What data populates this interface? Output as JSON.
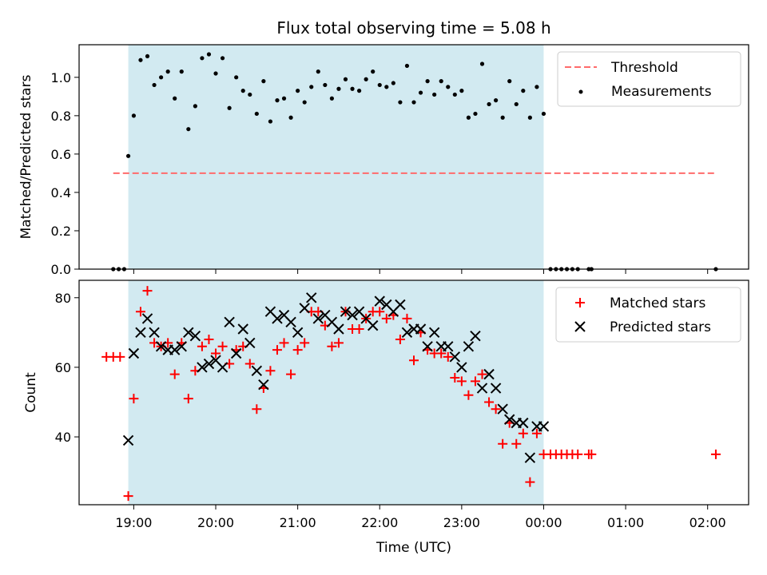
{
  "figure_title": "Flux total observing time = 5.08 h",
  "colors": {
    "observing_band": "#add8e6",
    "threshold": "#ff6b6b",
    "measurements": "#000000",
    "matched": "#ff0000",
    "predicted": "#000000"
  },
  "chart_data": [
    {
      "type": "scatter",
      "title": "Flux total observing time = 5.08 h",
      "xlabel": "",
      "ylabel": "Matched/Predicted stars",
      "xlim": [
        "18:20",
        "02:30"
      ],
      "ylim": [
        0,
        1.17
      ],
      "yticks": [
        "0.0",
        "0.2",
        "0.4",
        "0.6",
        "0.8",
        "1.0"
      ],
      "observing_window": [
        "18:56",
        "00:00"
      ],
      "legend_position": "top-right",
      "threshold": {
        "name": "Threshold",
        "value": 0.5,
        "x_range": [
          "18:45",
          "02:05"
        ]
      },
      "series": [
        {
          "name": "Measurements",
          "x": [
            "18:45",
            "18:49",
            "18:53",
            "18:56",
            "19:00",
            "19:05",
            "19:10",
            "19:15",
            "19:20",
            "19:25",
            "19:30",
            "19:35",
            "19:40",
            "19:45",
            "19:50",
            "19:55",
            "20:00",
            "20:05",
            "20:10",
            "20:15",
            "20:20",
            "20:25",
            "20:30",
            "20:35",
            "20:40",
            "20:45",
            "20:50",
            "20:55",
            "21:00",
            "21:05",
            "21:10",
            "21:15",
            "21:20",
            "21:25",
            "21:30",
            "21:35",
            "21:40",
            "21:45",
            "21:50",
            "21:55",
            "22:00",
            "22:05",
            "22:10",
            "22:15",
            "22:20",
            "22:25",
            "22:30",
            "22:35",
            "22:40",
            "22:45",
            "22:50",
            "22:55",
            "23:00",
            "23:05",
            "23:10",
            "23:15",
            "23:20",
            "23:25",
            "23:30",
            "23:35",
            "23:40",
            "23:45",
            "23:50",
            "23:55",
            "00:00",
            "00:05",
            "00:09",
            "00:13",
            "00:17",
            "00:21",
            "00:25",
            "00:33",
            "00:35",
            "02:06"
          ],
          "y": [
            0,
            0,
            0,
            0.59,
            0.8,
            1.09,
            1.11,
            0.96,
            1.0,
            1.03,
            0.89,
            1.03,
            0.73,
            0.85,
            1.1,
            1.12,
            1.02,
            1.1,
            0.84,
            1.0,
            0.93,
            0.91,
            0.81,
            0.98,
            0.77,
            0.88,
            0.89,
            0.79,
            0.93,
            0.87,
            0.95,
            1.03,
            0.96,
            0.89,
            0.94,
            0.99,
            0.94,
            0.93,
            0.99,
            1.03,
            0.96,
            0.95,
            0.97,
            0.87,
            1.06,
            0.87,
            0.92,
            0.98,
            0.91,
            0.98,
            0.95,
            0.91,
            0.93,
            0.79,
            0.81,
            1.07,
            0.86,
            0.88,
            0.79,
            0.98,
            0.86,
            0.93,
            0.79,
            0.95,
            0.81,
            0,
            0,
            0,
            0,
            0,
            0,
            0,
            0,
            0
          ]
        }
      ]
    },
    {
      "type": "scatter",
      "xlabel": "Time (UTC)",
      "ylabel": "Count",
      "xlim": [
        "18:20",
        "02:30"
      ],
      "ylim": [
        20.5,
        85
      ],
      "xticks": [
        "19:00",
        "20:00",
        "21:00",
        "22:00",
        "23:00",
        "00:00",
        "01:00",
        "02:00"
      ],
      "yticks": [
        "40",
        "60",
        "80"
      ],
      "observing_window": [
        "18:56",
        "00:00"
      ],
      "legend_position": "top-right",
      "series": [
        {
          "name": "Matched stars",
          "x": [
            "18:40",
            "18:45",
            "18:50",
            "18:56",
            "19:00",
            "19:05",
            "19:10",
            "19:15",
            "19:20",
            "19:25",
            "19:30",
            "19:35",
            "19:40",
            "19:45",
            "19:50",
            "19:55",
            "20:00",
            "20:05",
            "20:10",
            "20:15",
            "20:20",
            "20:25",
            "20:30",
            "20:35",
            "20:40",
            "20:45",
            "20:50",
            "20:55",
            "21:00",
            "21:05",
            "21:10",
            "21:15",
            "21:20",
            "21:25",
            "21:30",
            "21:35",
            "21:40",
            "21:45",
            "21:50",
            "21:55",
            "22:00",
            "22:05",
            "22:10",
            "22:15",
            "22:20",
            "22:25",
            "22:30",
            "22:35",
            "22:40",
            "22:45",
            "22:50",
            "22:55",
            "23:00",
            "23:05",
            "23:10",
            "23:15",
            "23:20",
            "23:25",
            "23:30",
            "23:35",
            "23:40",
            "23:45",
            "23:50",
            "23:55",
            "00:00",
            "00:05",
            "00:09",
            "00:13",
            "00:17",
            "00:21",
            "00:25",
            "00:33",
            "00:35",
            "02:06"
          ],
          "y": [
            63,
            63,
            63,
            23,
            51,
            76,
            82,
            67,
            66,
            67,
            58,
            67,
            51,
            59,
            66,
            68,
            64,
            66,
            61,
            65,
            66,
            61,
            48,
            54,
            59,
            65,
            67,
            58,
            65,
            67,
            76,
            76,
            72,
            66,
            67,
            76,
            71,
            71,
            74,
            76,
            76,
            74,
            75,
            68,
            74,
            62,
            70,
            65,
            64,
            64,
            63,
            57,
            56,
            52,
            56,
            58,
            50,
            48,
            38,
            44,
            38,
            41,
            27,
            41,
            35,
            35,
            35,
            35,
            35,
            35,
            35,
            35,
            35,
            35
          ]
        },
        {
          "name": "Predicted stars",
          "x": [
            "18:56",
            "19:00",
            "19:05",
            "19:10",
            "19:15",
            "19:20",
            "19:25",
            "19:30",
            "19:35",
            "19:40",
            "19:45",
            "19:50",
            "19:55",
            "20:00",
            "20:05",
            "20:10",
            "20:15",
            "20:20",
            "20:25",
            "20:30",
            "20:35",
            "20:40",
            "20:45",
            "20:50",
            "20:55",
            "21:00",
            "21:05",
            "21:10",
            "21:15",
            "21:20",
            "21:25",
            "21:30",
            "21:35",
            "21:40",
            "21:45",
            "21:50",
            "21:55",
            "22:00",
            "22:05",
            "22:10",
            "22:15",
            "22:20",
            "22:25",
            "22:30",
            "22:35",
            "22:40",
            "22:45",
            "22:50",
            "22:55",
            "23:00",
            "23:05",
            "23:10",
            "23:15",
            "23:20",
            "23:25",
            "23:30",
            "23:35",
            "23:40",
            "23:45",
            "23:50",
            "23:55",
            "00:00"
          ],
          "y": [
            39,
            64,
            70,
            74,
            70,
            66,
            65,
            65,
            66,
            70,
            69,
            60,
            61,
            62,
            60,
            73,
            64,
            71,
            67,
            59,
            55,
            76,
            74,
            75,
            73,
            70,
            77,
            80,
            74,
            75,
            73,
            71,
            76,
            75,
            76,
            74,
            72,
            79,
            78,
            76,
            78,
            70,
            71,
            71,
            66,
            70,
            66,
            66,
            63,
            60,
            66,
            69,
            54,
            58,
            54,
            48,
            45,
            44,
            44,
            34,
            43,
            43
          ]
        }
      ]
    }
  ]
}
